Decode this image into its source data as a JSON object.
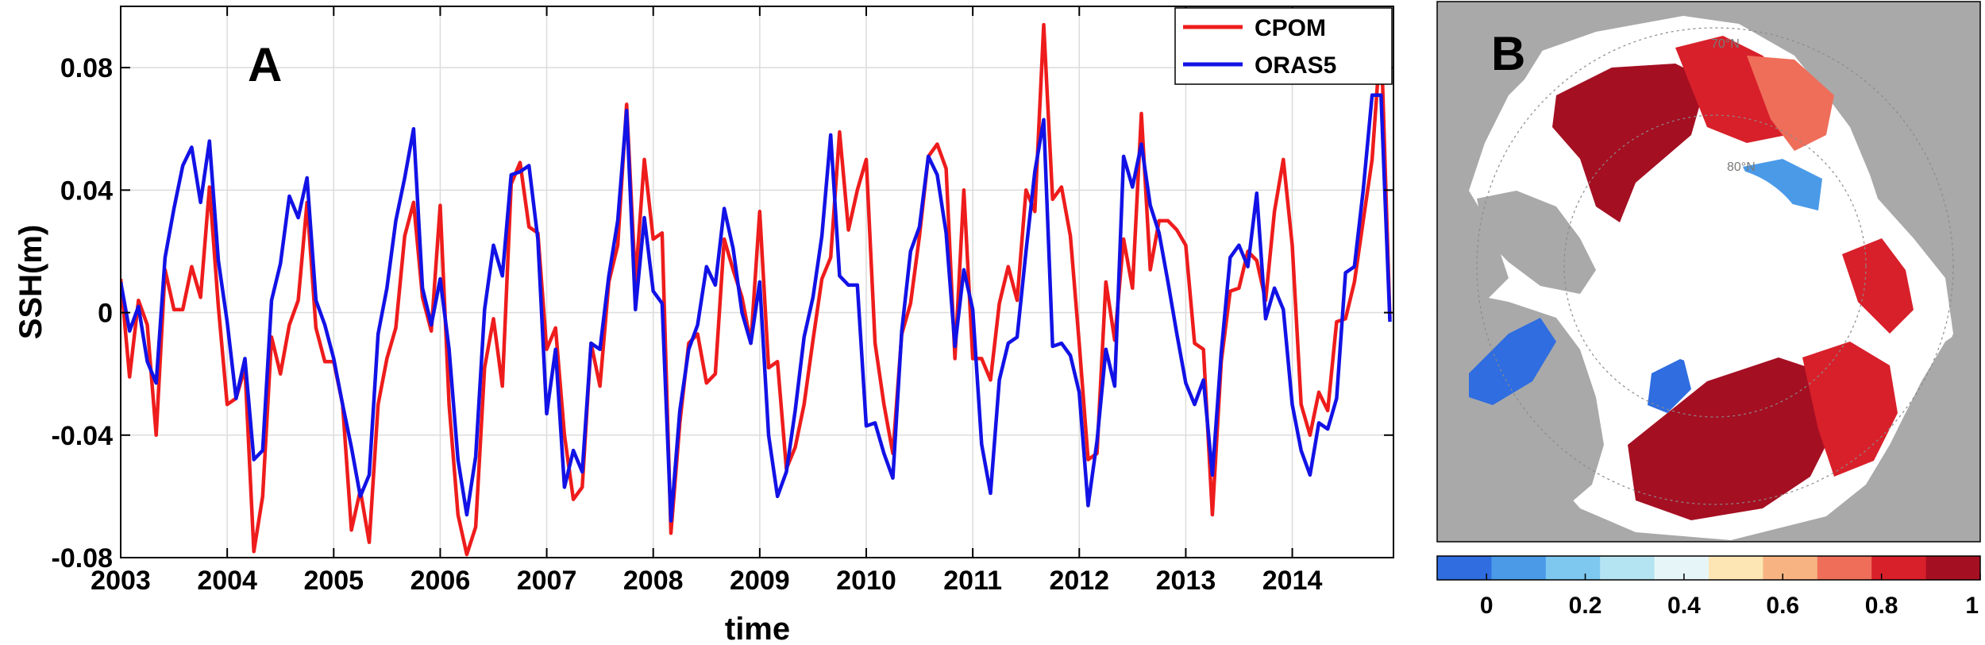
{
  "chart_data": [
    {
      "type": "line",
      "panel_label": "A",
      "xlabel": "time",
      "ylabel": "SSH(m)",
      "xlim": [
        2003.0,
        2014.95
      ],
      "ylim": [
        -0.08,
        0.1
      ],
      "grid": true,
      "legend_position": "top-right",
      "x_ticks": [
        2003,
        2004,
        2005,
        2006,
        2007,
        2008,
        2009,
        2010,
        2011,
        2012,
        2013,
        2014
      ],
      "x_tick_labels": [
        "2003",
        "2004",
        "2005",
        "2006",
        "2007",
        "2008",
        "2009",
        "2010",
        "2011",
        "2012",
        "2013",
        "2014"
      ],
      "y_ticks": [
        -0.08,
        -0.04,
        0,
        0.04,
        0.08
      ],
      "y_tick_labels": [
        "-0.08",
        "-0.04",
        "0",
        "0.04",
        "0.08"
      ],
      "x_start": 2003.0,
      "x_step": 0.08333,
      "series": [
        {
          "name": "CPOM",
          "color": "#ee1c1c",
          "values": [
            0.011,
            -0.021,
            0.004,
            -0.004,
            -0.04,
            0.014,
            0.001,
            0.001,
            0.015,
            0.005,
            0.041,
            0.002,
            -0.03,
            -0.028,
            -0.018,
            -0.078,
            -0.06,
            -0.008,
            -0.02,
            -0.004,
            0.004,
            0.036,
            -0.005,
            -0.016,
            -0.016,
            -0.03,
            -0.071,
            -0.058,
            -0.075,
            -0.03,
            -0.015,
            -0.005,
            0.025,
            0.036,
            0.005,
            -0.006,
            0.035,
            -0.03,
            -0.066,
            -0.079,
            -0.07,
            -0.018,
            -0.002,
            -0.024,
            0.042,
            0.049,
            0.028,
            0.026,
            -0.012,
            -0.005,
            -0.04,
            -0.061,
            -0.057,
            -0.01,
            -0.024,
            0.01,
            0.022,
            0.068,
            0.01,
            0.05,
            0.024,
            0.026,
            -0.072,
            -0.036,
            -0.01,
            -0.007,
            -0.023,
            -0.02,
            0.024,
            0.014,
            0.005,
            -0.01,
            0.033,
            -0.018,
            -0.016,
            -0.051,
            -0.044,
            -0.03,
            -0.009,
            0.011,
            0.018,
            0.059,
            0.027,
            0.04,
            0.05,
            -0.01,
            -0.03,
            -0.046,
            -0.007,
            0.003,
            0.025,
            0.051,
            0.055,
            0.047,
            -0.015,
            0.04,
            -0.015,
            -0.015,
            -0.022,
            0.003,
            0.015,
            0.004,
            0.04,
            0.033,
            0.094,
            0.037,
            0.041,
            0.025,
            -0.01,
            -0.048,
            -0.046,
            0.01,
            -0.009,
            0.024,
            0.008,
            0.065,
            0.014,
            0.03,
            0.03,
            0.027,
            0.022,
            -0.01,
            -0.012,
            -0.066,
            -0.016,
            0.007,
            0.008,
            0.02,
            0.017,
            0.004,
            0.033,
            0.05,
            0.022,
            -0.03,
            -0.04,
            -0.026,
            -0.032,
            -0.003,
            -0.002,
            0.01,
            0.03,
            0.05,
            0.091,
            -0.002
          ]
        },
        {
          "name": "ORAS5",
          "color": "#1212e6",
          "values": [
            0.01,
            -0.006,
            0.002,
            -0.016,
            -0.023,
            0.018,
            0.034,
            0.048,
            0.054,
            0.036,
            0.056,
            0.017,
            -0.003,
            -0.028,
            -0.015,
            -0.048,
            -0.045,
            0.004,
            0.016,
            0.038,
            0.031,
            0.044,
            0.004,
            -0.004,
            -0.015,
            -0.03,
            -0.044,
            -0.06,
            -0.053,
            -0.007,
            0.008,
            0.03,
            0.044,
            0.06,
            0.008,
            -0.004,
            0.011,
            -0.012,
            -0.048,
            -0.066,
            -0.047,
            0.001,
            0.022,
            0.012,
            0.045,
            0.046,
            0.048,
            0.024,
            -0.033,
            -0.012,
            -0.057,
            -0.045,
            -0.052,
            -0.01,
            -0.012,
            0.012,
            0.03,
            0.066,
            0.001,
            0.031,
            0.007,
            0.003,
            -0.068,
            -0.032,
            -0.012,
            -0.004,
            0.015,
            0.009,
            0.034,
            0.021,
            0.0,
            -0.01,
            0.01,
            -0.04,
            -0.06,
            -0.052,
            -0.032,
            -0.008,
            0.005,
            0.025,
            0.058,
            0.012,
            0.009,
            0.009,
            -0.037,
            -0.036,
            -0.046,
            -0.054,
            -0.006,
            0.02,
            0.028,
            0.051,
            0.045,
            0.026,
            -0.011,
            0.014,
            0.001,
            -0.043,
            -0.059,
            -0.022,
            -0.01,
            -0.008,
            0.02,
            0.046,
            0.063,
            -0.011,
            -0.01,
            -0.014,
            -0.026,
            -0.063,
            -0.042,
            -0.012,
            -0.024,
            0.051,
            0.041,
            0.055,
            0.035,
            0.026,
            0.01,
            -0.007,
            -0.023,
            -0.03,
            -0.022,
            -0.053,
            -0.013,
            0.018,
            0.022,
            0.015,
            0.039,
            -0.002,
            0.008,
            0.001,
            -0.03,
            -0.045,
            -0.053,
            -0.036,
            -0.038,
            -0.028,
            0.013,
            0.015,
            0.04,
            0.071,
            0.071,
            -0.003
          ]
        }
      ]
    },
    {
      "type": "heatmap",
      "panel_label": "B",
      "map_labels": [
        "70°N",
        "80°N"
      ],
      "colorbar": {
        "range": [
          -0.1,
          1.0
        ],
        "ticks": [
          0,
          0.2,
          0.4,
          0.6,
          0.8,
          1
        ],
        "tick_labels": [
          "0",
          "0.2",
          "0.4",
          "0.6",
          "0.8",
          "1"
        ],
        "colors": [
          "#2f6de0",
          "#4a9ae8",
          "#7ec8f0",
          "#b4e4f2",
          "#e6f6f8",
          "#fde6b4",
          "#f7b482",
          "#ee6e5a",
          "#d8202a",
          "#a50f22"
        ]
      }
    }
  ]
}
